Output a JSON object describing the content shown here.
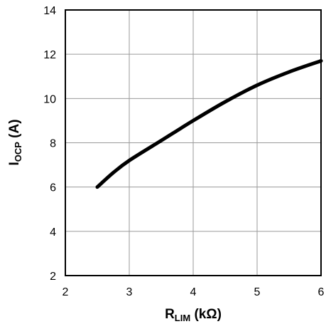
{
  "chart_data": {
    "type": "line",
    "title": "",
    "xlabel": {
      "main": "R",
      "sub": "LIM",
      "unit": " (kΩ)"
    },
    "ylabel": {
      "main": "I",
      "sub": "OCP",
      "unit": " (A)"
    },
    "xlim": [
      2,
      6
    ],
    "ylim": [
      2,
      14
    ],
    "xticks": [
      "2",
      "3",
      "4",
      "5",
      "6"
    ],
    "yticks": [
      "2",
      "4",
      "6",
      "8",
      "10",
      "12",
      "14"
    ],
    "grid": true,
    "legend": "none",
    "series": [
      {
        "color": "#000000",
        "x": [
          2.5,
          2.75,
          3.0,
          3.5,
          4.0,
          4.5,
          5.0,
          5.5,
          6.0
        ],
        "y": [
          6.0,
          6.65,
          7.2,
          8.1,
          9.0,
          9.85,
          10.6,
          11.2,
          11.7
        ]
      }
    ]
  }
}
